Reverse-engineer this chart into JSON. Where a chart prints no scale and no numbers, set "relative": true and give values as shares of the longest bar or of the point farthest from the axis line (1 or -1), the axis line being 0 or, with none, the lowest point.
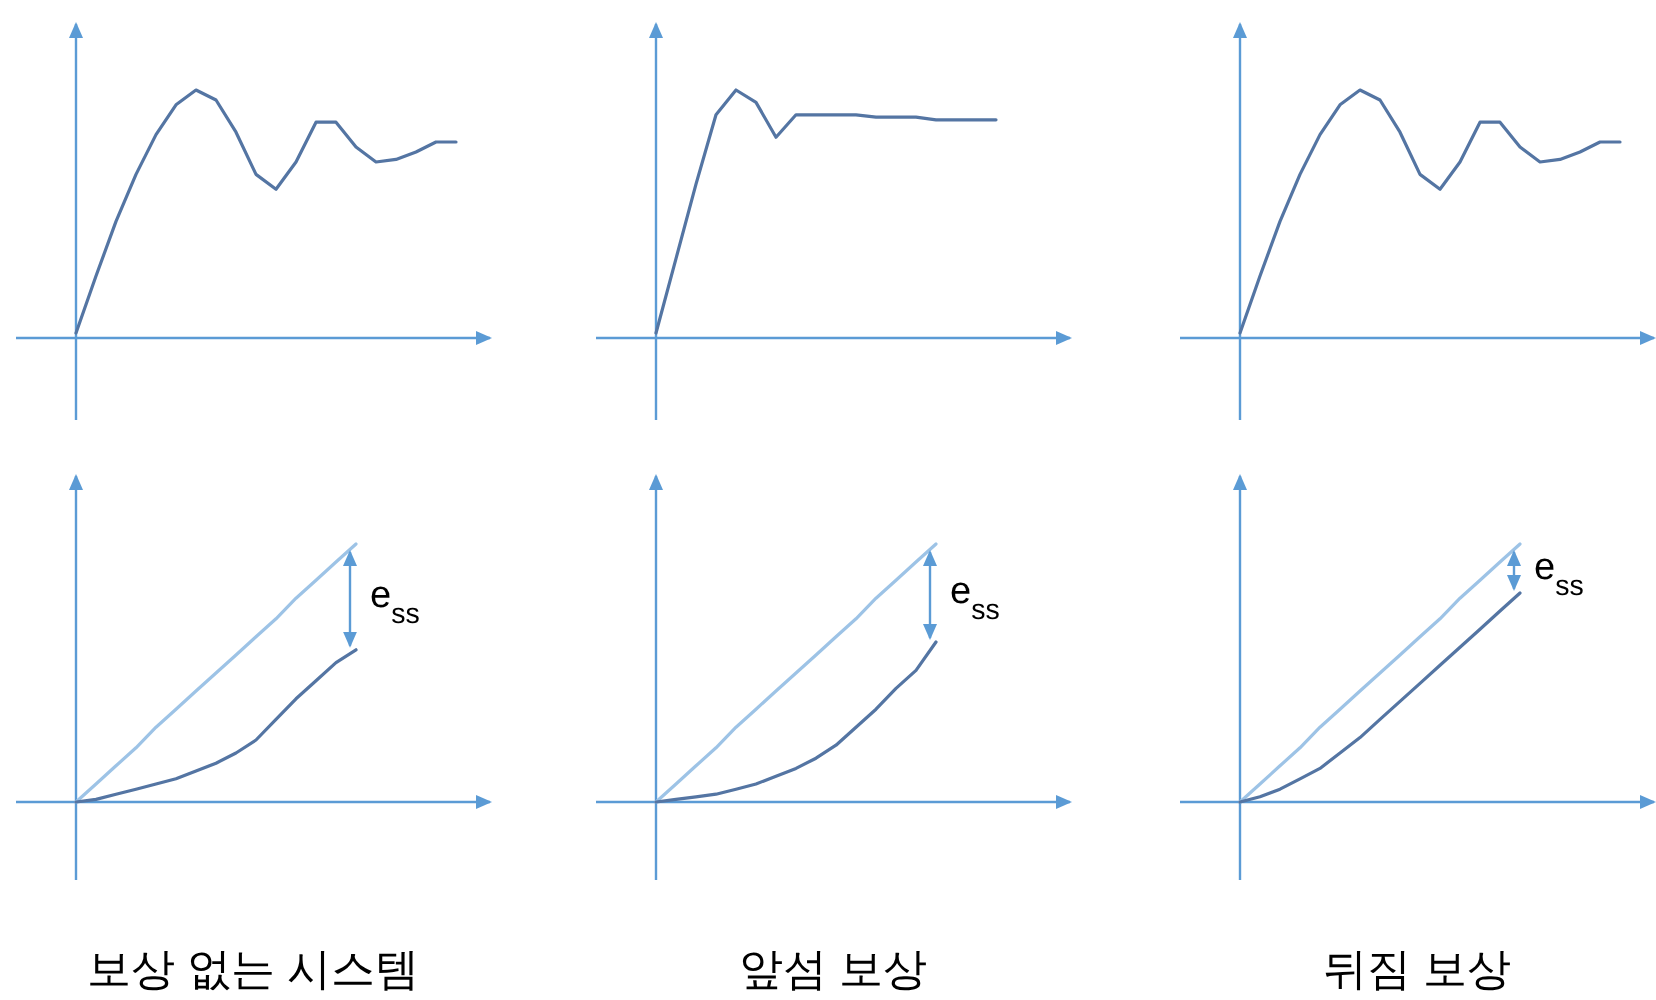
{
  "chart_data": [
    {
      "type": "line",
      "relative": true,
      "categories": [
        null,
        null,
        null,
        null,
        null,
        null,
        null,
        null,
        null,
        null,
        null,
        null,
        null,
        null,
        null,
        null,
        null,
        null,
        null,
        null,
        null
      ],
      "series": [
        {
          "color": "#5475a3",
          "values": [
            0.02,
            0.25,
            0.47,
            0.66,
            0.82,
            0.94,
            1.0,
            0.96,
            0.83,
            0.66,
            0.6,
            0.71,
            0.87,
            0.87,
            0.77,
            0.71,
            0.72,
            0.75,
            0.79,
            0.79,
            null
          ]
        }
      ]
    },
    {
      "type": "line",
      "relative": true,
      "categories": [
        null,
        null,
        null,
        null,
        null,
        null,
        null,
        null,
        null,
        null,
        null,
        null,
        null,
        null,
        null,
        null,
        null,
        null,
        null,
        null,
        null
      ],
      "series": [
        {
          "color": "#5475a3",
          "values": [
            0.02,
            0.32,
            0.62,
            0.9,
            1.0,
            0.95,
            0.81,
            0.9,
            0.9,
            0.9,
            0.9,
            0.89,
            0.89,
            0.89,
            0.88,
            0.88,
            0.88,
            0.88,
            null,
            null,
            null
          ]
        }
      ]
    },
    {
      "type": "line",
      "relative": true,
      "categories": [
        null,
        null,
        null,
        null,
        null,
        null,
        null,
        null,
        null,
        null,
        null,
        null,
        null,
        null,
        null,
        null,
        null,
        null,
        null,
        null,
        null
      ],
      "series": [
        {
          "color": "#5475a3",
          "values": [
            0.02,
            0.25,
            0.47,
            0.66,
            0.82,
            0.94,
            1.0,
            0.96,
            0.83,
            0.66,
            0.6,
            0.71,
            0.87,
            0.87,
            0.77,
            0.71,
            0.72,
            0.75,
            0.79,
            0.79,
            null
          ]
        }
      ]
    },
    {
      "type": "line",
      "relative": true,
      "categories": [
        null,
        null,
        null,
        null,
        null,
        null,
        null,
        null,
        null,
        null,
        null,
        null,
        null,
        null,
        null,
        null,
        null,
        null,
        null,
        null,
        null
      ],
      "xlabel": "보상 없는 시스템",
      "annotations": [
        "e$_{ss}$"
      ],
      "series": [
        {
          "color": "#9dc3e6",
          "values": [
            0,
            0.07,
            0.14,
            0.21,
            0.29,
            0.36,
            0.43,
            0.5,
            0.57,
            0.64,
            0.71,
            0.79,
            0.86,
            0.93,
            1.0,
            null,
            null,
            null,
            null,
            null,
            null
          ]
        },
        {
          "color": "#5475a3",
          "values": [
            0,
            0.01,
            0.03,
            0.05,
            0.07,
            0.09,
            0.12,
            0.15,
            0.19,
            0.24,
            0.32,
            0.4,
            0.47,
            0.54,
            0.59,
            null,
            null,
            null,
            null,
            null,
            null
          ]
        }
      ]
    },
    {
      "type": "line",
      "relative": true,
      "categories": [
        null,
        null,
        null,
        null,
        null,
        null,
        null,
        null,
        null,
        null,
        null,
        null,
        null,
        null,
        null,
        null,
        null,
        null,
        null,
        null,
        null
      ],
      "xlabel": "앞섬 보상",
      "annotations": [
        "e$_{ss}$"
      ],
      "series": [
        {
          "color": "#9dc3e6",
          "values": [
            0,
            0.07,
            0.14,
            0.21,
            0.29,
            0.36,
            0.43,
            0.5,
            0.57,
            0.64,
            0.71,
            0.79,
            0.86,
            0.93,
            1.0,
            null,
            null,
            null,
            null,
            null,
            null
          ]
        },
        {
          "color": "#5475a3",
          "values": [
            0,
            0.01,
            0.02,
            0.03,
            0.05,
            0.07,
            0.1,
            0.13,
            0.17,
            0.22,
            0.29,
            0.36,
            0.44,
            0.51,
            0.62,
            null,
            null,
            null,
            null,
            null,
            null
          ]
        }
      ]
    },
    {
      "type": "line",
      "relative": true,
      "categories": [
        null,
        null,
        null,
        null,
        null,
        null,
        null,
        null,
        null,
        null,
        null,
        null,
        null,
        null,
        null,
        null,
        null,
        null,
        null,
        null,
        null
      ],
      "xlabel": "뒤짐 보상",
      "annotations": [
        "e$_{ss}$"
      ],
      "series": [
        {
          "color": "#9dc3e6",
          "values": [
            0,
            0.07,
            0.14,
            0.21,
            0.29,
            0.36,
            0.43,
            0.5,
            0.57,
            0.64,
            0.71,
            0.79,
            0.86,
            0.93,
            1.0,
            null,
            null,
            null,
            null,
            null,
            null
          ]
        },
        {
          "color": "#5475a3",
          "values": [
            0,
            0.02,
            0.05,
            0.09,
            0.13,
            0.19,
            0.25,
            0.32,
            0.39,
            0.46,
            0.53,
            0.6,
            0.67,
            0.74,
            0.81,
            null,
            null,
            null,
            null,
            null,
            null
          ]
        }
      ]
    }
  ]
}
